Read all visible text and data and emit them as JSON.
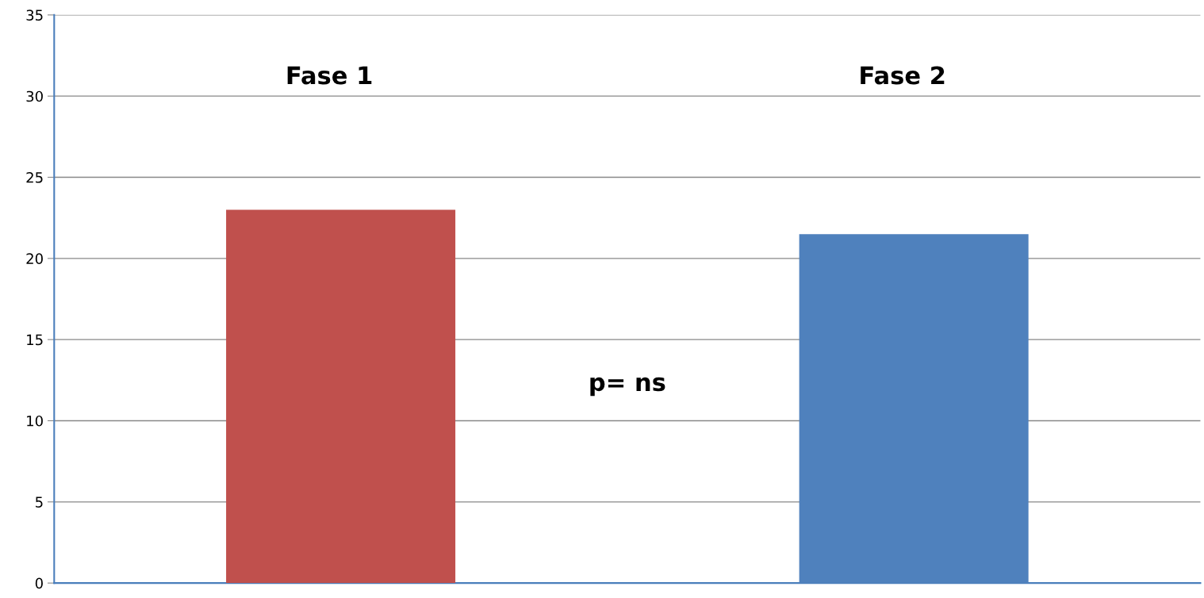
{
  "chart_data": {
    "type": "bar",
    "categories": [
      "Fase 1",
      "Fase 2"
    ],
    "values": [
      23,
      21.5
    ],
    "colors": [
      "#c0504d",
      "#4f81bd"
    ],
    "ylim": [
      0,
      35
    ],
    "yticks": [
      0,
      5,
      10,
      15,
      20,
      25,
      30,
      35
    ],
    "grid": "y",
    "annotations": [
      "p= ns"
    ]
  }
}
